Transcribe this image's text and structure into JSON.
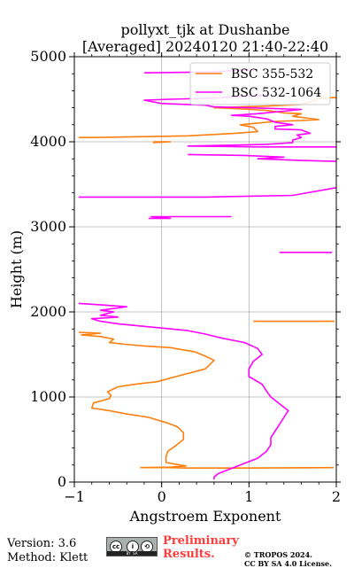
{
  "chart_data": {
    "type": "line",
    "title_line1": "pollyxt_tjk at Dushanbe",
    "title_line2": "[Averaged] 20240120 21:40-22:40",
    "xlabel": "Angstroem Exponent",
    "ylabel": "Height (m)",
    "xlim": [
      -1,
      2
    ],
    "ylim": [
      0,
      5000
    ],
    "xticks": [
      -1,
      0,
      1,
      2
    ],
    "xtick_labels": [
      "−1",
      "0",
      "1",
      "2"
    ],
    "yticks": [
      0,
      1000,
      2000,
      3000,
      4000,
      5000
    ],
    "ytick_labels": [
      "0",
      "1000",
      "2000",
      "3000",
      "4000",
      "5000"
    ],
    "grid": true,
    "legend_position": "top-right",
    "series": [
      {
        "name": "BSC 355-532",
        "color": "#ff7f0e",
        "segments": [
          [
            [
              1.97,
              170
            ],
            [
              1.0,
              165
            ],
            [
              0.3,
              165
            ],
            [
              0.1,
              170
            ],
            [
              -0.24,
              170
            ],
            [
              0.1,
              175
            ],
            [
              0.28,
              190
            ],
            [
              0.15,
              210
            ],
            [
              0.05,
              230
            ],
            [
              0.05,
              300
            ],
            [
              0.07,
              360
            ],
            [
              0.15,
              420
            ],
            [
              0.25,
              500
            ],
            [
              0.25,
              580
            ],
            [
              0.18,
              650
            ],
            [
              0.05,
              700
            ],
            [
              -0.15,
              760
            ],
            [
              -0.4,
              800
            ],
            [
              -0.6,
              840
            ],
            [
              -0.8,
              870
            ],
            [
              -0.78,
              930
            ],
            [
              -0.6,
              980
            ],
            [
              -0.58,
              1020
            ],
            [
              -0.62,
              1060
            ],
            [
              -0.5,
              1120
            ],
            [
              -0.3,
              1150
            ],
            [
              -0.05,
              1180
            ],
            [
              0.2,
              1250
            ],
            [
              0.5,
              1330
            ],
            [
              0.6,
              1430
            ],
            [
              0.5,
              1480
            ],
            [
              0.38,
              1530
            ],
            [
              0.1,
              1580
            ],
            [
              -0.2,
              1600
            ],
            [
              -0.42,
              1620
            ],
            [
              -0.6,
              1640
            ],
            [
              -0.55,
              1680
            ],
            [
              -0.7,
              1710
            ],
            [
              -0.92,
              1730
            ],
            [
              -0.7,
              1750
            ],
            [
              -0.95,
              1760
            ]
          ],
          [
            [
              1.05,
              1890
            ],
            [
              1.98,
              1890
            ]
          ],
          [
            [
              -0.95,
              4050
            ],
            [
              -0.8,
              4050
            ],
            [
              -0.2,
              4060
            ],
            [
              0.3,
              4070
            ],
            [
              0.85,
              4100
            ],
            [
              1.1,
              4120
            ],
            [
              1.05,
              4170
            ],
            [
              0.9,
              4200
            ],
            [
              1.1,
              4220
            ],
            [
              1.3,
              4240
            ],
            [
              1.6,
              4250
            ],
            [
              1.8,
              4260
            ],
            [
              1.5,
              4300
            ],
            [
              1.6,
              4330
            ],
            [
              1.4,
              4340
            ],
            [
              1.2,
              4370
            ],
            [
              0.85,
              4390
            ],
            [
              0.6,
              4400
            ],
            [
              1.2,
              4420
            ],
            [
              1.6,
              4440
            ],
            [
              1.7,
              4470
            ],
            [
              1.8,
              4510
            ],
            [
              2.0,
              4520
            ]
          ],
          [
            [
              -0.1,
              4000
            ],
            [
              0.1,
              4000
            ],
            [
              -0.1,
              3990
            ]
          ]
        ]
      },
      {
        "name": "BSC 532-1064",
        "color": "#ff00ff",
        "segments": [
          [
            [
              0.6,
              30
            ],
            [
              0.6,
              60
            ],
            [
              0.65,
              100
            ],
            [
              0.8,
              160
            ],
            [
              0.9,
              200
            ],
            [
              1.1,
              280
            ],
            [
              1.2,
              360
            ],
            [
              1.25,
              440
            ],
            [
              1.25,
              520
            ],
            [
              1.3,
              600
            ],
            [
              1.35,
              680
            ],
            [
              1.4,
              760
            ],
            [
              1.45,
              840
            ],
            [
              1.35,
              920
            ],
            [
              1.25,
              1000
            ],
            [
              1.2,
              1070
            ],
            [
              1.15,
              1150
            ],
            [
              1.0,
              1240
            ],
            [
              1.0,
              1330
            ],
            [
              1.05,
              1420
            ],
            [
              1.15,
              1500
            ],
            [
              1.1,
              1570
            ],
            [
              0.95,
              1640
            ],
            [
              0.7,
              1690
            ],
            [
              0.5,
              1740
            ],
            [
              0.3,
              1780
            ],
            [
              0.0,
              1810
            ],
            [
              -0.2,
              1830
            ],
            [
              -0.5,
              1860
            ],
            [
              -0.7,
              1890
            ],
            [
              -0.8,
              1920
            ],
            [
              -0.5,
              1940
            ],
            [
              -0.7,
              1960
            ],
            [
              -0.55,
              2000
            ],
            [
              -0.7,
              2020
            ],
            [
              -0.4,
              2060
            ],
            [
              -0.65,
              2080
            ],
            [
              -0.95,
              2100
            ]
          ],
          [
            [
              1.35,
              2700
            ],
            [
              1.95,
              2700
            ]
          ],
          [
            [
              -0.15,
              3100
            ],
            [
              0.1,
              3100
            ],
            [
              -0.12,
              3120
            ],
            [
              0.8,
              3120
            ]
          ],
          [
            [
              -0.95,
              3350
            ],
            [
              0.5,
              3350
            ],
            [
              1.5,
              3370
            ],
            [
              2.0,
              3460
            ]
          ],
          [
            [
              2.0,
              3770
            ],
            [
              1.6,
              3780
            ],
            [
              1.1,
              3800
            ],
            [
              1.4,
              3820
            ],
            [
              0.95,
              3840
            ],
            [
              0.3,
              3850
            ]
          ],
          [
            [
              2.0,
              3940
            ],
            [
              1.1,
              3940
            ],
            [
              0.3,
              3950
            ],
            [
              0.8,
              3960
            ],
            [
              1.2,
              3970
            ],
            [
              1.5,
              3990
            ],
            [
              1.5,
              4020
            ],
            [
              1.6,
              4050
            ],
            [
              1.55,
              4080
            ],
            [
              1.7,
              4100
            ],
            [
              1.6,
              4140
            ],
            [
              1.3,
              4150
            ],
            [
              1.3,
              4180
            ],
            [
              1.5,
              4200
            ],
            [
              1.3,
              4230
            ],
            [
              1.2,
              4270
            ],
            [
              1.0,
              4300
            ],
            [
              0.8,
              4310
            ],
            [
              1.1,
              4330
            ],
            [
              1.6,
              4380
            ],
            [
              1.0,
              4400
            ],
            [
              0.6,
              4410
            ],
            [
              0.5,
              4430
            ],
            [
              0.0,
              4450
            ],
            [
              -0.2,
              4490
            ],
            [
              0.1,
              4500
            ],
            [
              0.5,
              4510
            ],
            [
              0.9,
              4530
            ],
            [
              1.2,
              4550
            ]
          ],
          [
            [
              -0.2,
              4810
            ],
            [
              0.5,
              4820
            ],
            [
              1.1,
              4850
            ]
          ]
        ]
      }
    ]
  },
  "footer": {
    "version": "Version: 3.6",
    "method": "Method: Klett",
    "preliminary_line1": "Preliminary",
    "preliminary_line2": "Results.",
    "copyright": "© TROPOS 2024.",
    "license": "CC BY SA 4.0 License."
  }
}
